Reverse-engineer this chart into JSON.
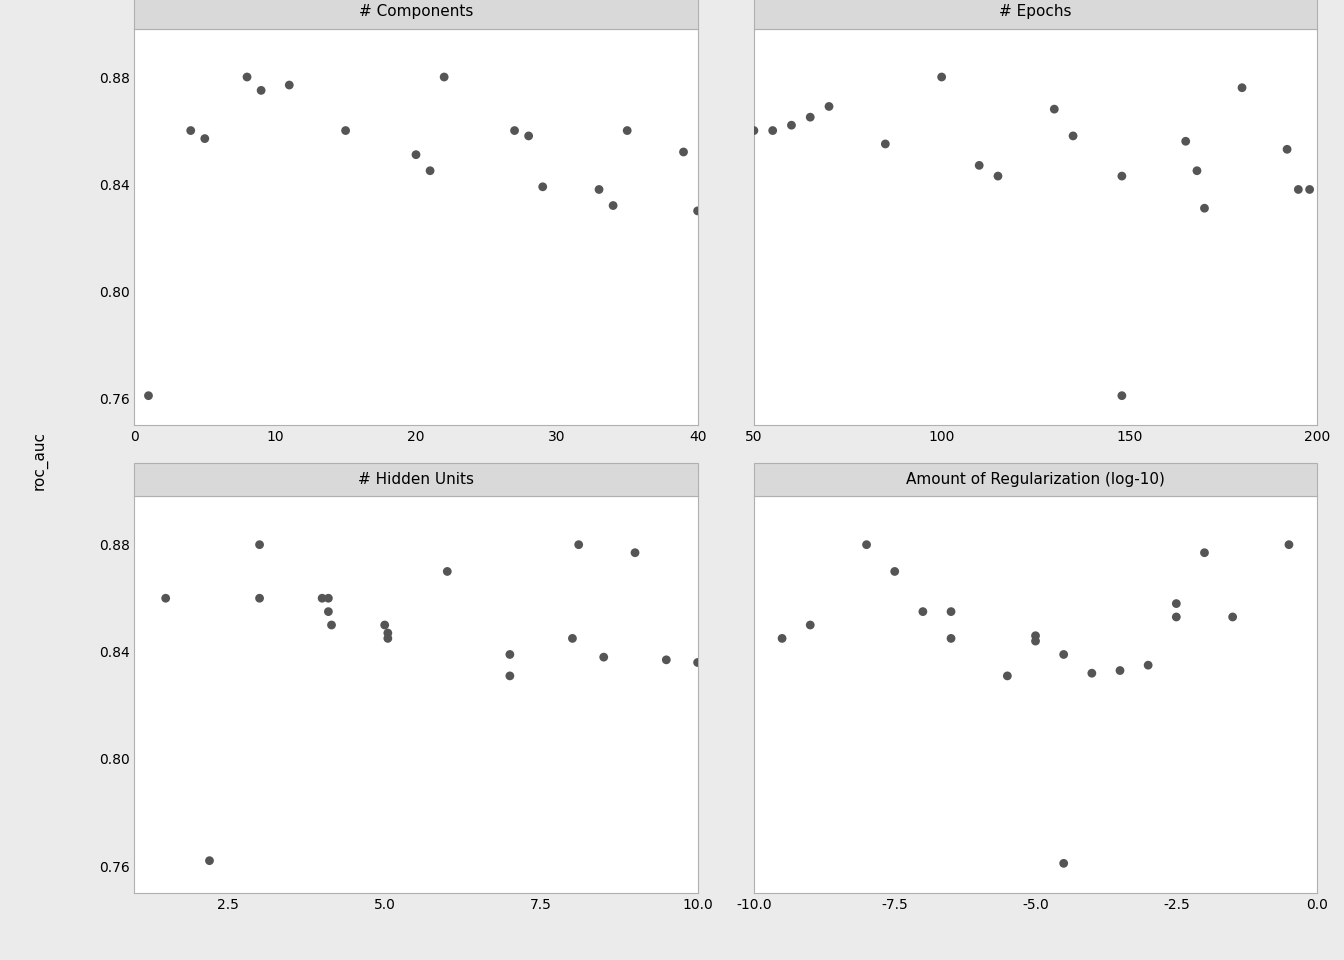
{
  "panels": [
    {
      "title": "# Components",
      "xlim": [
        0,
        40
      ],
      "xticks": [
        0,
        10,
        20,
        30,
        40
      ],
      "x": [
        1,
        4,
        5,
        8,
        9,
        11,
        15,
        20,
        21,
        22,
        27,
        28,
        29,
        33,
        34,
        35,
        39,
        40
      ],
      "y": [
        0.761,
        0.86,
        0.857,
        0.88,
        0.875,
        0.877,
        0.86,
        0.851,
        0.845,
        0.88,
        0.86,
        0.858,
        0.839,
        0.838,
        0.832,
        0.86,
        0.852,
        0.83
      ]
    },
    {
      "title": "# Epochs",
      "xlim": [
        50,
        200
      ],
      "xticks": [
        50,
        100,
        150,
        200
      ],
      "x": [
        50,
        55,
        60,
        65,
        70,
        85,
        100,
        110,
        115,
        130,
        135,
        148,
        148,
        165,
        168,
        170,
        180,
        192,
        195,
        198
      ],
      "y": [
        0.86,
        0.86,
        0.862,
        0.865,
        0.869,
        0.855,
        0.88,
        0.847,
        0.843,
        0.868,
        0.858,
        0.843,
        0.761,
        0.856,
        0.845,
        0.831,
        0.876,
        0.853,
        0.838,
        0.838
      ]
    },
    {
      "title": "# Hidden Units",
      "xlim": [
        1,
        10
      ],
      "xticks": [
        2.5,
        5.0,
        7.5,
        10.0
      ],
      "x": [
        1.5,
        2.2,
        3.0,
        3.0,
        4.0,
        4.1,
        4.1,
        4.15,
        5.0,
        5.05,
        5.05,
        6.0,
        7.0,
        7.0,
        8.0,
        8.1,
        8.5,
        9.0,
        9.5,
        10.0
      ],
      "y": [
        0.86,
        0.762,
        0.88,
        0.86,
        0.86,
        0.86,
        0.855,
        0.85,
        0.85,
        0.847,
        0.845,
        0.87,
        0.839,
        0.831,
        0.845,
        0.88,
        0.838,
        0.877,
        0.837,
        0.836
      ]
    },
    {
      "title": "Amount of Regularization (log-10)",
      "xlim": [
        -10,
        0
      ],
      "xticks": [
        -10.0,
        -7.5,
        -5.0,
        -2.5,
        0.0
      ],
      "x": [
        -9.5,
        -9.0,
        -8.0,
        -7.5,
        -7.0,
        -6.5,
        -6.5,
        -5.5,
        -5.0,
        -5.0,
        -4.5,
        -4.5,
        -4.0,
        -3.5,
        -3.0,
        -2.5,
        -2.5,
        -2.0,
        -1.5,
        -0.5
      ],
      "y": [
        0.845,
        0.85,
        0.88,
        0.87,
        0.855,
        0.855,
        0.845,
        0.831,
        0.846,
        0.844,
        0.839,
        0.761,
        0.832,
        0.833,
        0.835,
        0.858,
        0.853,
        0.877,
        0.853,
        0.88
      ]
    }
  ],
  "ylim": [
    0.75,
    0.898
  ],
  "yticks": [
    0.76,
    0.8,
    0.84,
    0.88
  ],
  "ylabel": "roc_auc",
  "dot_color": "#555555",
  "dot_size": 40,
  "panel_bg_color": "#ffffff",
  "figure_bg_color": "#ebebeb",
  "strip_bg_color": "#d9d9d9",
  "strip_border_color": "#b0b0b0",
  "grid_color": "#ffffff",
  "title_fontsize": 11,
  "tick_fontsize": 10,
  "ylabel_fontsize": 11
}
